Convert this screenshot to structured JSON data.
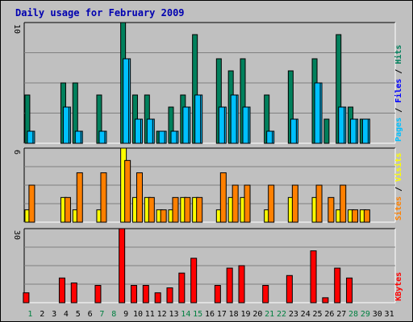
{
  "chart_data": {
    "type": "bar",
    "title": "Daily usage for February 2009",
    "categories": [
      "1",
      "2",
      "3",
      "4",
      "5",
      "6",
      "7",
      "8",
      "9",
      "10",
      "11",
      "12",
      "13",
      "14",
      "15",
      "16",
      "17",
      "18",
      "19",
      "20",
      "21",
      "22",
      "23",
      "24",
      "25",
      "26",
      "27",
      "28",
      "29",
      "30",
      "31"
    ],
    "weekend_days": [
      "1",
      "7",
      "8",
      "14",
      "15",
      "21",
      "22",
      "28",
      "29"
    ],
    "panels": [
      {
        "name": "hits-files-pages",
        "ymax": 10,
        "y_tick_label": "10",
        "side_labels": [
          "Pages",
          "Files",
          "Hits"
        ],
        "series": [
          {
            "name": "Hits",
            "color": "#00805c",
            "values": [
              4,
              0,
              0,
              5,
              5,
              0,
              4,
              0,
              10,
              4,
              4,
              1,
              3,
              4,
              9,
              0,
              7,
              6,
              7,
              0,
              4,
              0,
              6,
              0,
              7,
              2,
              9,
              3,
              2,
              0,
              0
            ]
          },
          {
            "name": "Files",
            "color": "#00c0ff",
            "values": [
              1,
              0,
              0,
              3,
              1,
              0,
              1,
              0,
              7,
              2,
              2,
              1,
              1,
              3,
              4,
              0,
              3,
              4,
              3,
              0,
              1,
              0,
              2,
              0,
              5,
              0,
              3,
              2,
              2,
              0,
              0
            ]
          },
          {
            "name": "Pages",
            "color": "#00c0ff",
            "values": [
              1,
              0,
              0,
              3,
              1,
              0,
              1,
              0,
              7,
              2,
              2,
              1,
              1,
              3,
              4,
              0,
              3,
              4,
              3,
              0,
              1,
              0,
              2,
              0,
              5,
              0,
              3,
              2,
              2,
              0,
              0
            ]
          }
        ]
      },
      {
        "name": "visits-sites",
        "ymax": 6,
        "y_tick_label": "6",
        "side_labels": [
          "Sites",
          "Visits"
        ],
        "series": [
          {
            "name": "Visits",
            "color": "#ffff00",
            "values": [
              1,
              0,
              0,
              2,
              1,
              0,
              1,
              0,
              6,
              2,
              2,
              1,
              1,
              2,
              2,
              0,
              1,
              2,
              2,
              0,
              1,
              0,
              2,
              0,
              2,
              0,
              1,
              1,
              1,
              0,
              0
            ]
          },
          {
            "name": "Sites",
            "color": "#ff8000",
            "values": [
              3,
              0,
              0,
              2,
              4,
              0,
              4,
              0,
              5,
              4,
              2,
              1,
              2,
              2,
              2,
              0,
              4,
              3,
              3,
              0,
              3,
              0,
              3,
              0,
              3,
              2,
              3,
              1,
              1,
              0,
              0
            ]
          }
        ]
      },
      {
        "name": "kbytes",
        "ymax": 30,
        "y_tick_label": "30",
        "side_labels": [
          "KBytes"
        ],
        "series": [
          {
            "name": "KBytes",
            "color": "#ff0000",
            "values": [
              4,
              0,
              0,
              10,
              8,
              0,
              7,
              0,
              30,
              7,
              7,
              4,
              6,
              12,
              18,
              0,
              7,
              14,
              15,
              0,
              7,
              0,
              11,
              0,
              21,
              2,
              14,
              10,
              0,
              0,
              0
            ]
          }
        ]
      }
    ]
  }
}
